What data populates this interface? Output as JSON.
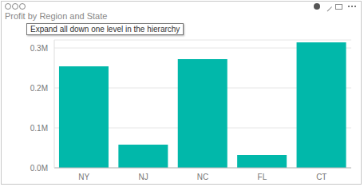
{
  "chart_data": {
    "type": "bar",
    "title": "Profit by Region and State",
    "categories": [
      "NY",
      "NJ",
      "NC",
      "FL",
      "CT"
    ],
    "values": [
      254000,
      58000,
      272000,
      32000,
      314000
    ],
    "color": "#01b8aa",
    "ylim": [
      0,
      320000
    ],
    "yticks": [
      {
        "value": 0,
        "label": "0.0M"
      },
      {
        "value": 100000,
        "label": "0.1M"
      },
      {
        "value": 200000,
        "label": "0.2M"
      },
      {
        "value": 300000,
        "label": "0.3M"
      }
    ],
    "grid": true
  },
  "tooltip": "Expand all down one level in the hierarchy"
}
